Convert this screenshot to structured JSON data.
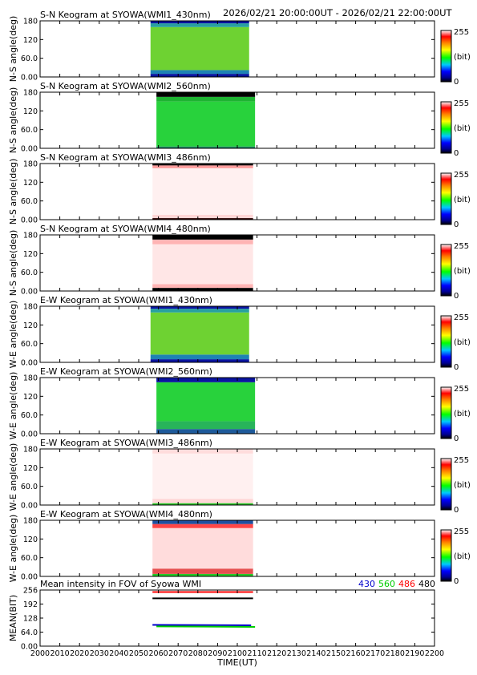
{
  "header": {
    "time_range": "2026/02/21 20:00:00UT - 2026/02/21 22:00:00UT"
  },
  "colors": {
    "gap": "#ffffff",
    "color_430": "#0000cc",
    "color_560": "#00cc00",
    "color_486": "#ff0000",
    "color_480": "#000000"
  },
  "chart_data": [
    {
      "type": "heatmap",
      "title": "S-N Keogram at SYOWA(WMI1_430nm)",
      "ylabel": "N-S angle(deg)",
      "palette": "rainbow",
      "yticks": [
        "180",
        "120",
        "60.0",
        "0.00"
      ],
      "ylim": [
        0,
        180
      ],
      "colorbar": {
        "max": "255",
        "unit": "(bit)",
        "min": "0"
      },
      "data_window_x": [
        2056,
        2106
      ],
      "bands": [
        {
          "y": [
            0,
            10
          ],
          "color": "#0a14a0"
        },
        {
          "y": [
            10,
            22
          ],
          "color": "#1e82b4"
        },
        {
          "y": [
            22,
            160
          ],
          "color": "#6ed232"
        },
        {
          "y": [
            160,
            172
          ],
          "color": "#28a0a0"
        },
        {
          "y": [
            172,
            180
          ],
          "color": "#0a14a0"
        }
      ]
    },
    {
      "type": "heatmap",
      "title": "S-N Keogram at SYOWA(WMI2_560nm)",
      "ylabel": "N-S angle(deg)",
      "palette": "rainbow",
      "yticks": [
        "180",
        "120",
        "60.0",
        "0.00"
      ],
      "ylim": [
        0,
        180
      ],
      "colorbar": {
        "max": "255",
        "unit": "(bit)",
        "min": "0"
      },
      "data_window_x": [
        2059,
        2109
      ],
      "bands": [
        {
          "y": [
            0,
            6
          ],
          "color": "#1e8c64"
        },
        {
          "y": [
            6,
            150
          ],
          "color": "#28d23c"
        },
        {
          "y": [
            150,
            165
          ],
          "color": "#1eb432"
        },
        {
          "y": [
            165,
            180
          ],
          "color": "#000000"
        }
      ]
    },
    {
      "type": "heatmap",
      "title": "S-N Keogram at SYOWA(WMI3_486nm)",
      "ylabel": "N-S angle(deg)",
      "palette": "rainbow",
      "yticks": [
        "180",
        "120",
        "60.0",
        "0.00"
      ],
      "ylim": [
        0,
        180
      ],
      "colorbar": {
        "max": "255",
        "unit": "(bit)",
        "min": "0"
      },
      "data_window_x": [
        2057,
        2108
      ],
      "bands": [
        {
          "y": [
            0,
            5
          ],
          "color": "#2a0000"
        },
        {
          "y": [
            5,
            16
          ],
          "color": "#ffd6d6"
        },
        {
          "y": [
            16,
            165
          ],
          "color": "#fff0f0"
        },
        {
          "y": [
            165,
            174
          ],
          "color": "#ff9c9c"
        },
        {
          "y": [
            174,
            180
          ],
          "color": "#000000"
        }
      ]
    },
    {
      "type": "heatmap",
      "title": "S-N Keogram at SYOWA(WMI4_480nm)",
      "ylabel": "N-S angle(deg)",
      "palette": "rainbow",
      "yticks": [
        "180",
        "120",
        "60.0",
        "0.00"
      ],
      "ylim": [
        0,
        180
      ],
      "colorbar": {
        "max": "255",
        "unit": "(bit)",
        "min": "0"
      },
      "data_window_x": [
        2057,
        2108
      ],
      "bands": [
        {
          "y": [
            0,
            10
          ],
          "color": "#000000"
        },
        {
          "y": [
            10,
            22
          ],
          "color": "#ffb4b4"
        },
        {
          "y": [
            22,
            150
          ],
          "color": "#ffe6e6"
        },
        {
          "y": [
            150,
            165
          ],
          "color": "#ffb4b4"
        },
        {
          "y": [
            165,
            180
          ],
          "color": "#000000"
        }
      ]
    },
    {
      "type": "heatmap",
      "title": "E-W Keogram at SYOWA(WMI1_430nm)",
      "ylabel": "W-E angle(deg)",
      "palette": "rainbow",
      "yticks": [
        "180",
        "120",
        "60.0",
        "0.00"
      ],
      "ylim": [
        0,
        180
      ],
      "colorbar": {
        "max": "255",
        "unit": "(bit)",
        "min": "0"
      },
      "data_window_x": [
        2056,
        2106
      ],
      "bands": [
        {
          "y": [
            0,
            10
          ],
          "color": "#0a14a0"
        },
        {
          "y": [
            10,
            25
          ],
          "color": "#1e82b4"
        },
        {
          "y": [
            25,
            160
          ],
          "color": "#6ed232"
        },
        {
          "y": [
            160,
            172
          ],
          "color": "#28a0a0"
        },
        {
          "y": [
            172,
            180
          ],
          "color": "#0a14a0"
        }
      ]
    },
    {
      "type": "heatmap",
      "title": "E-W Keogram at SYOWA(WMI2_560nm)",
      "ylabel": "W-E angle(deg)",
      "palette": "rainbow",
      "yticks": [
        "180",
        "120",
        "60.0",
        "0.00"
      ],
      "ylim": [
        0,
        180
      ],
      "colorbar": {
        "max": "255",
        "unit": "(bit)",
        "min": "0"
      },
      "data_window_x": [
        2059,
        2109
      ],
      "bands": [
        {
          "y": [
            0,
            15
          ],
          "color": "#1e5a9a"
        },
        {
          "y": [
            15,
            40
          ],
          "color": "#28b45a"
        },
        {
          "y": [
            40,
            165
          ],
          "color": "#28d23c"
        },
        {
          "y": [
            165,
            180
          ],
          "color": "#0a14a0"
        }
      ]
    },
    {
      "type": "heatmap",
      "title": "E-W Keogram at SYOWA(WMI3_486nm)",
      "ylabel": "W-E angle(deg)",
      "palette": "rainbow",
      "yticks": [
        "180",
        "120",
        "60.0",
        "0.00"
      ],
      "ylim": [
        0,
        180
      ],
      "colorbar": {
        "max": "255",
        "unit": "(bit)",
        "min": "0"
      },
      "data_window_x": [
        2057,
        2108
      ],
      "bands": [
        {
          "y": [
            0,
            6
          ],
          "color": "#28c828"
        },
        {
          "y": [
            6,
            20
          ],
          "color": "#ffd6d6"
        },
        {
          "y": [
            20,
            165
          ],
          "color": "#fff0f0"
        },
        {
          "y": [
            165,
            180
          ],
          "color": "#ffdcdc"
        }
      ]
    },
    {
      "type": "heatmap",
      "title": "E-W Keogram at SYOWA(WMI4_480nm)",
      "ylabel": "W-E angle(deg)",
      "palette": "rainbow",
      "yticks": [
        "180",
        "120",
        "60.0",
        "0.00"
      ],
      "ylim": [
        0,
        180
      ],
      "colorbar": {
        "max": "255",
        "unit": "(bit)",
        "min": "0"
      },
      "data_window_x": [
        2057,
        2108
      ],
      "bands": [
        {
          "y": [
            0,
            8
          ],
          "color": "#28c828"
        },
        {
          "y": [
            8,
            25
          ],
          "color": "#e65050"
        },
        {
          "y": [
            25,
            155
          ],
          "color": "#ffdcdc"
        },
        {
          "y": [
            155,
            168
          ],
          "color": "#ff4646"
        },
        {
          "y": [
            168,
            180
          ],
          "color": "#1e50a0"
        }
      ]
    },
    {
      "type": "line",
      "title": "Mean intensity in FOV of Syowa WMI",
      "ylabel": "MEAN(BIT)",
      "yticks": [
        "256",
        "192",
        "128",
        "64.0",
        "0.00"
      ],
      "ylim": [
        0,
        256
      ],
      "xlabel": "TIME(UT)",
      "xticks": [
        "2000",
        "2010",
        "2020",
        "2030",
        "2040",
        "2050",
        "2060",
        "2070",
        "2080",
        "2090",
        "2100",
        "2110",
        "2120",
        "2130",
        "2140",
        "2150",
        "2160",
        "2170",
        "2180",
        "2190",
        "2200"
      ],
      "xlim": [
        2000,
        2200
      ],
      "legend": [
        "430",
        "560",
        "486",
        "480"
      ],
      "series": [
        {
          "name": "430",
          "color": "#0000cc",
          "x": [
            2057,
            2107
          ],
          "y": [
            97,
            95
          ]
        },
        {
          "name": "560",
          "color": "#00cc00",
          "x": [
            2059,
            2109
          ],
          "y": [
            90,
            88
          ]
        },
        {
          "name": "486",
          "color": "#ff0000",
          "x": [
            2057,
            2108
          ],
          "y": [
            247,
            247
          ]
        },
        {
          "name": "480",
          "color": "#000000",
          "x": [
            2057,
            2108
          ],
          "y": [
            218,
            218
          ]
        }
      ]
    }
  ]
}
